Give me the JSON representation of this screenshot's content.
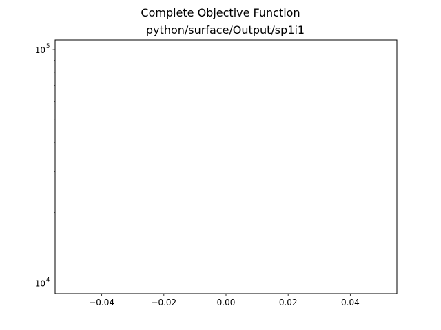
{
  "chart_data": {
    "type": "line",
    "title": "Complete Objective Function",
    "subtitle": "python/surface/Output/sp1i1",
    "xlabel": "",
    "ylabel": "",
    "x": [],
    "series": [],
    "xlim": [
      -0.055,
      0.055
    ],
    "ylim": [
      9000,
      110000
    ],
    "yscale": "log",
    "grid": false,
    "x_ticks": [
      {
        "value": -0.04,
        "label": "−0.04"
      },
      {
        "value": -0.02,
        "label": "−0.02"
      },
      {
        "value": 0.0,
        "label": "0.00"
      },
      {
        "value": 0.02,
        "label": "0.02"
      },
      {
        "value": 0.04,
        "label": "0.04"
      }
    ],
    "y_major_ticks": [
      {
        "value": 10000,
        "base": "10",
        "exp": "4"
      },
      {
        "value": 100000,
        "base": "10",
        "exp": "5"
      }
    ],
    "y_minor_ticks": [
      20000,
      30000,
      40000,
      50000,
      60000,
      70000,
      80000,
      90000
    ]
  }
}
